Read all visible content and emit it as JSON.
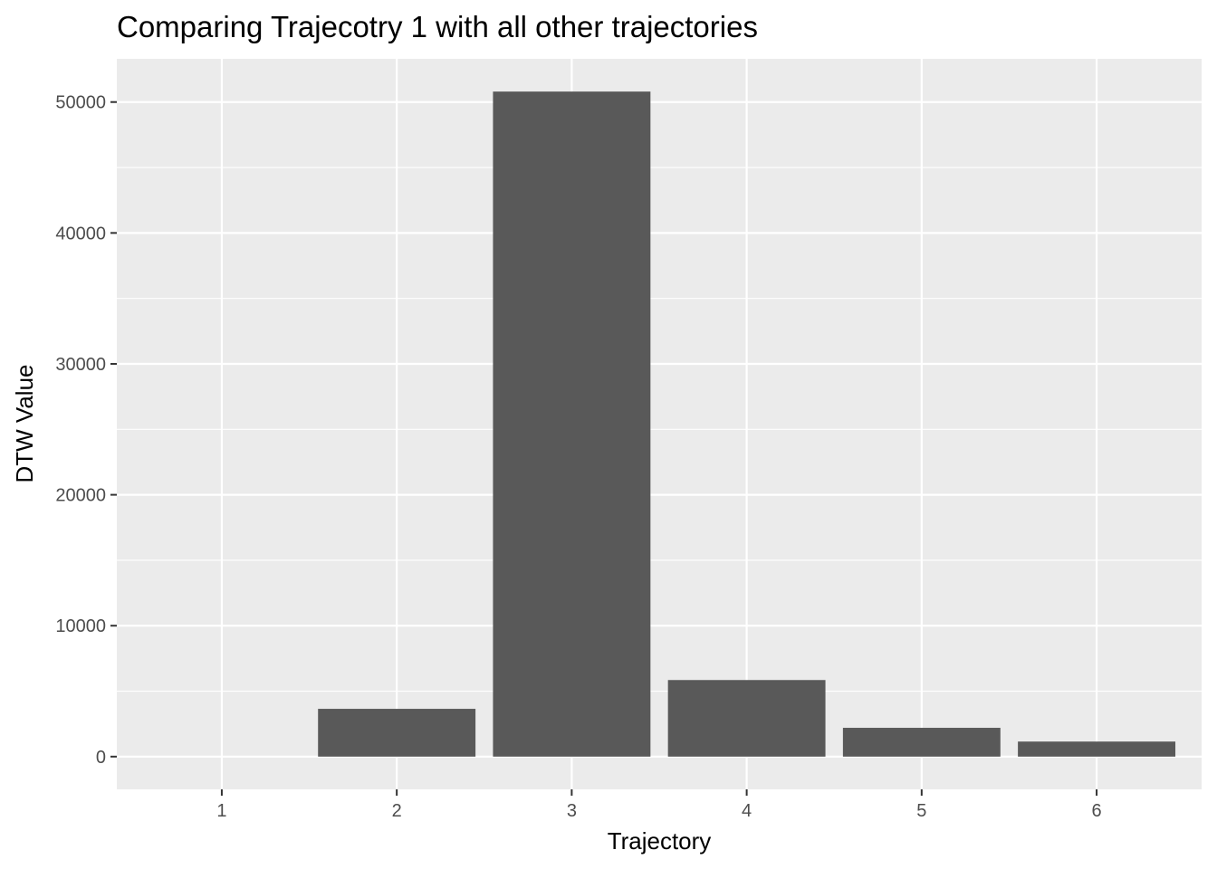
{
  "chart_data": {
    "type": "bar",
    "title": "Comparing Trajecotry 1 with all other trajectories",
    "xlabel": "Trajectory",
    "ylabel": "DTW Value",
    "categories": [
      "1",
      "2",
      "3",
      "4",
      "5",
      "6"
    ],
    "values": [
      0,
      3650,
      50800,
      5850,
      2200,
      1150
    ],
    "ylim": [
      -2500,
      53300
    ],
    "yticks": [
      0,
      10000,
      20000,
      30000,
      40000,
      50000
    ],
    "grid": true,
    "legend": "none",
    "colors": {
      "panel": "#ebebeb",
      "grid": "#ffffff",
      "bar": "#595959",
      "tick_text": "#4d4d4d"
    }
  }
}
